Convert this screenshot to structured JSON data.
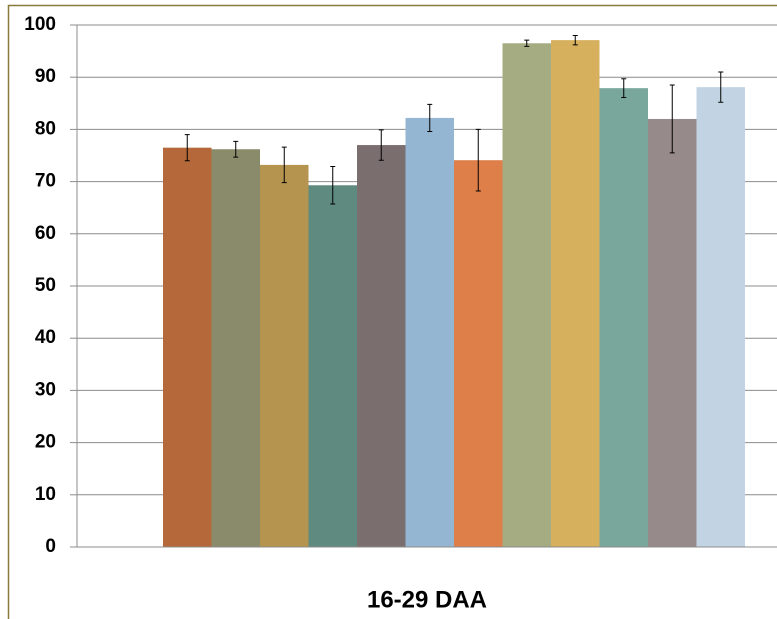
{
  "chart_data": {
    "type": "bar",
    "categories": [
      "16-29 DAA"
    ],
    "series": [
      {
        "color": "#b5693a",
        "values": [
          76.5
        ],
        "errors": [
          2.5
        ]
      },
      {
        "color": "#8a8b6a",
        "values": [
          76.2
        ],
        "errors": [
          1.5
        ]
      },
      {
        "color": "#b5944f",
        "values": [
          73.2
        ],
        "errors": [
          3.4
        ]
      },
      {
        "color": "#5f8a80",
        "values": [
          69.3
        ],
        "errors": [
          3.6
        ]
      },
      {
        "color": "#7a6e6e",
        "values": [
          77.0
        ],
        "errors": [
          2.9
        ]
      },
      {
        "color": "#94b6d3",
        "values": [
          82.2
        ],
        "errors": [
          2.6
        ]
      },
      {
        "color": "#de7f4a",
        "values": [
          74.1
        ],
        "errors": [
          5.9
        ]
      },
      {
        "color": "#a5ac82",
        "values": [
          96.5
        ],
        "errors": [
          0.6
        ]
      },
      {
        "color": "#d7b05e",
        "values": [
          97.1
        ],
        "errors": [
          0.9
        ]
      },
      {
        "color": "#79a79c",
        "values": [
          87.9
        ],
        "errors": [
          1.8
        ]
      },
      {
        "color": "#968b8a",
        "values": [
          82.0
        ],
        "errors": [
          6.5
        ]
      },
      {
        "color": "#c2d4e3",
        "values": [
          88.1
        ],
        "errors": [
          2.9
        ]
      }
    ],
    "ylim": [
      0,
      100
    ],
    "yticks": [
      0,
      10,
      20,
      30,
      40,
      50,
      60,
      70,
      80,
      90,
      100
    ],
    "grid": true
  }
}
